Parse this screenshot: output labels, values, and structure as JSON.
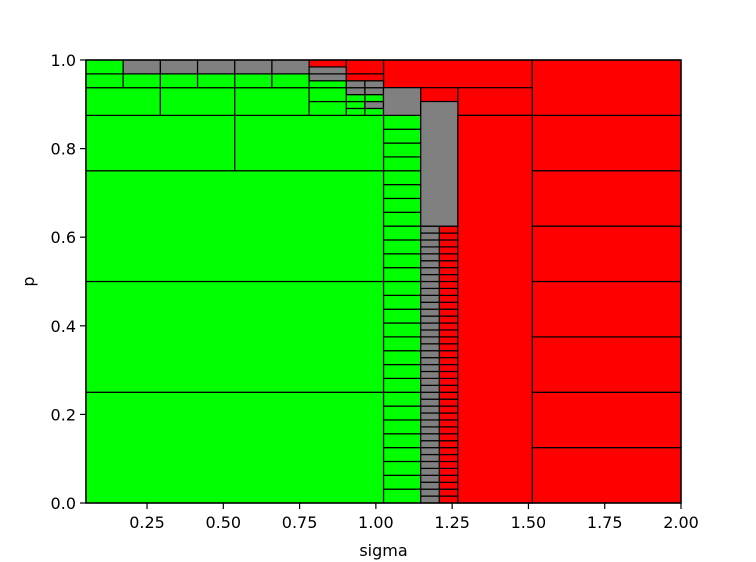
{
  "chart_data": {
    "type": "heatmap",
    "title": "",
    "xlabel": "sigma",
    "ylabel": "p",
    "xlim": [
      0.05,
      2.0
    ],
    "ylim": [
      0.0,
      1.0
    ],
    "xticks": [
      "0.25",
      "0.50",
      "0.75",
      "1.00",
      "1.25",
      "1.50",
      "1.75",
      "2.00"
    ],
    "xtick_values": [
      0.25,
      0.5,
      0.75,
      1.0,
      1.25,
      1.5,
      1.75,
      2.0
    ],
    "yticks": [
      "0.0",
      "0.2",
      "0.4",
      "0.6",
      "0.8",
      "1.0"
    ],
    "ytick_values": [
      0.0,
      0.2,
      0.4,
      0.6,
      0.8,
      1.0
    ],
    "grid": false,
    "colors": {
      "green": "#00ff00",
      "gray": "#808080",
      "red": "#ff0000",
      "edge": "#000000"
    },
    "cells": [
      {
        "x0": 0.05,
        "x1": 1.025,
        "y0": 0.0,
        "y1": 0.25,
        "c": "green"
      },
      {
        "x0": 0.05,
        "x1": 1.025,
        "y0": 0.25,
        "y1": 0.5,
        "c": "green"
      },
      {
        "x0": 0.05,
        "x1": 1.025,
        "y0": 0.5,
        "y1": 0.75,
        "c": "green"
      },
      {
        "x0": 0.05,
        "x1": 0.5375,
        "y0": 0.75,
        "y1": 0.875,
        "c": "green"
      },
      {
        "x0": 0.5375,
        "x1": 1.025,
        "y0": 0.75,
        "y1": 0.875,
        "c": "green"
      },
      {
        "x0": 1.025,
        "x1": 1.5125,
        "y0": 0.875,
        "y1": 1.0,
        "c": "red"
      },
      {
        "x0": 1.5125,
        "x1": 2.0,
        "y0": 0.0,
        "y1": 0.125,
        "c": "red"
      },
      {
        "x0": 1.5125,
        "x1": 2.0,
        "y0": 0.125,
        "y1": 0.25,
        "c": "red"
      },
      {
        "x0": 1.5125,
        "x1": 2.0,
        "y0": 0.25,
        "y1": 0.375,
        "c": "red"
      },
      {
        "x0": 1.5125,
        "x1": 2.0,
        "y0": 0.375,
        "y1": 0.5,
        "c": "red"
      },
      {
        "x0": 1.5125,
        "x1": 2.0,
        "y0": 0.5,
        "y1": 0.625,
        "c": "red"
      },
      {
        "x0": 1.5125,
        "x1": 2.0,
        "y0": 0.625,
        "y1": 0.75,
        "c": "red"
      },
      {
        "x0": 1.5125,
        "x1": 2.0,
        "y0": 0.75,
        "y1": 0.875,
        "c": "red"
      },
      {
        "x0": 1.5125,
        "x1": 2.0,
        "y0": 0.875,
        "y1": 1.0,
        "c": "red"
      },
      {
        "x0": 0.05,
        "x1": 0.29375,
        "y0": 0.875,
        "y1": 0.9375,
        "c": "green"
      },
      {
        "x0": 0.29375,
        "x1": 0.5375,
        "y0": 0.875,
        "y1": 0.9375,
        "c": "green"
      },
      {
        "x0": 0.5375,
        "x1": 0.78125,
        "y0": 0.875,
        "y1": 0.9375,
        "c": "green"
      },
      {
        "x0": 0.78125,
        "x1": 0.903125,
        "y0": 0.875,
        "y1": 0.90625,
        "c": "green"
      },
      {
        "x0": 0.78125,
        "x1": 0.903125,
        "y0": 0.90625,
        "y1": 0.9375,
        "c": "green"
      },
      {
        "x0": 0.903125,
        "x1": 0.964063,
        "y0": 0.875,
        "y1": 0.890625,
        "c": "green"
      },
      {
        "x0": 0.903125,
        "x1": 0.964063,
        "y0": 0.890625,
        "y1": 0.90625,
        "c": "green"
      },
      {
        "x0": 0.964063,
        "x1": 1.025,
        "y0": 0.875,
        "y1": 0.890625,
        "c": "green"
      },
      {
        "x0": 0.964063,
        "x1": 1.025,
        "y0": 0.890625,
        "y1": 0.90625,
        "c": "gray"
      },
      {
        "x0": 0.903125,
        "x1": 0.964063,
        "y0": 0.90625,
        "y1": 0.921875,
        "c": "green"
      },
      {
        "x0": 0.964063,
        "x1": 1.025,
        "y0": 0.90625,
        "y1": 0.921875,
        "c": "green"
      },
      {
        "x0": 0.903125,
        "x1": 0.964063,
        "y0": 0.921875,
        "y1": 0.9375,
        "c": "gray"
      },
      {
        "x0": 0.964063,
        "x1": 1.025,
        "y0": 0.921875,
        "y1": 0.9375,
        "c": "gray"
      },
      {
        "x0": 0.05,
        "x1": 0.171875,
        "y0": 0.9375,
        "y1": 0.96875,
        "c": "green"
      },
      {
        "x0": 0.05,
        "x1": 0.171875,
        "y0": 0.96875,
        "y1": 1.0,
        "c": "green"
      },
      {
        "x0": 0.171875,
        "x1": 0.29375,
        "y0": 0.9375,
        "y1": 0.96875,
        "c": "green"
      },
      {
        "x0": 0.171875,
        "x1": 0.29375,
        "y0": 0.96875,
        "y1": 1.0,
        "c": "gray"
      },
      {
        "x0": 0.29375,
        "x1": 0.415625,
        "y0": 0.9375,
        "y1": 0.96875,
        "c": "green"
      },
      {
        "x0": 0.29375,
        "x1": 0.415625,
        "y0": 0.96875,
        "y1": 1.0,
        "c": "gray"
      },
      {
        "x0": 0.415625,
        "x1": 0.5375,
        "y0": 0.9375,
        "y1": 0.96875,
        "c": "green"
      },
      {
        "x0": 0.415625,
        "x1": 0.5375,
        "y0": 0.96875,
        "y1": 1.0,
        "c": "gray"
      },
      {
        "x0": 0.5375,
        "x1": 0.659375,
        "y0": 0.9375,
        "y1": 0.96875,
        "c": "green"
      },
      {
        "x0": 0.5375,
        "x1": 0.659375,
        "y0": 0.96875,
        "y1": 1.0,
        "c": "gray"
      },
      {
        "x0": 0.659375,
        "x1": 0.78125,
        "y0": 0.9375,
        "y1": 0.96875,
        "c": "green"
      },
      {
        "x0": 0.659375,
        "x1": 0.78125,
        "y0": 0.96875,
        "y1": 1.0,
        "c": "gray"
      },
      {
        "x0": 0.78125,
        "x1": 0.903125,
        "y0": 0.9375,
        "y1": 0.953125,
        "c": "green"
      },
      {
        "x0": 0.78125,
        "x1": 0.903125,
        "y0": 0.953125,
        "y1": 0.96875,
        "c": "gray"
      },
      {
        "x0": 0.78125,
        "x1": 0.903125,
        "y0": 0.96875,
        "y1": 0.984375,
        "c": "gray"
      },
      {
        "x0": 0.78125,
        "x1": 0.903125,
        "y0": 0.984375,
        "y1": 1.0,
        "c": "red"
      },
      {
        "x0": 0.903125,
        "x1": 0.964063,
        "y0": 0.9375,
        "y1": 0.953125,
        "c": "gray"
      },
      {
        "x0": 0.964063,
        "x1": 1.025,
        "y0": 0.9375,
        "y1": 0.953125,
        "c": "gray"
      },
      {
        "x0": 0.903125,
        "x1": 1.025,
        "y0": 0.953125,
        "y1": 0.96875,
        "c": "red"
      },
      {
        "x0": 0.903125,
        "x1": 1.025,
        "y0": 0.96875,
        "y1": 1.0,
        "c": "red"
      },
      {
        "x0": 1.025,
        "x1": 1.147,
        "y0": 0.90625,
        "y1": 0.9375,
        "c": "gray"
      },
      {
        "x0": 1.025,
        "x1": 1.147,
        "y0": 0.9375,
        "y1": 0.875,
        "c": "gray"
      },
      {
        "x0": 1.147,
        "x1": 1.26875,
        "y0": 0.9375,
        "y1": 0.875,
        "c": "red"
      },
      {
        "x0": 1.26875,
        "x1": 1.5125,
        "y0": 0.875,
        "y1": 0.9375,
        "c": "red"
      },
      {
        "x0": 1.147,
        "x1": 1.26875,
        "y0": 0.625,
        "y1": 0.90625,
        "c": "gray"
      },
      {
        "x0": 1.26875,
        "x1": 1.5125,
        "y0": 0.0,
        "y1": 0.875,
        "c": "red"
      }
    ],
    "stacks": [
      {
        "x0": 1.025,
        "x1": 1.147,
        "y0": 0.0,
        "y1": 0.875,
        "n": 28,
        "c": "green"
      },
      {
        "x0": 1.147,
        "x1": 1.20812,
        "y0": 0.0,
        "y1": 0.625,
        "n": 40,
        "c": "gray"
      },
      {
        "x0": 1.20812,
        "x1": 1.26875,
        "y0": 0.0,
        "y1": 0.625,
        "n": 40,
        "c": "red"
      },
      {
        "x0": 1.147,
        "x1": 1.26875,
        "y0": 0.625,
        "y1": 0.875,
        "n": 8,
        "c": "gray"
      },
      {
        "x0": 1.26875,
        "x1": 1.5125,
        "y0": 0.0,
        "y1": 0.875,
        "n": 14,
        "c": "red"
      }
    ]
  }
}
